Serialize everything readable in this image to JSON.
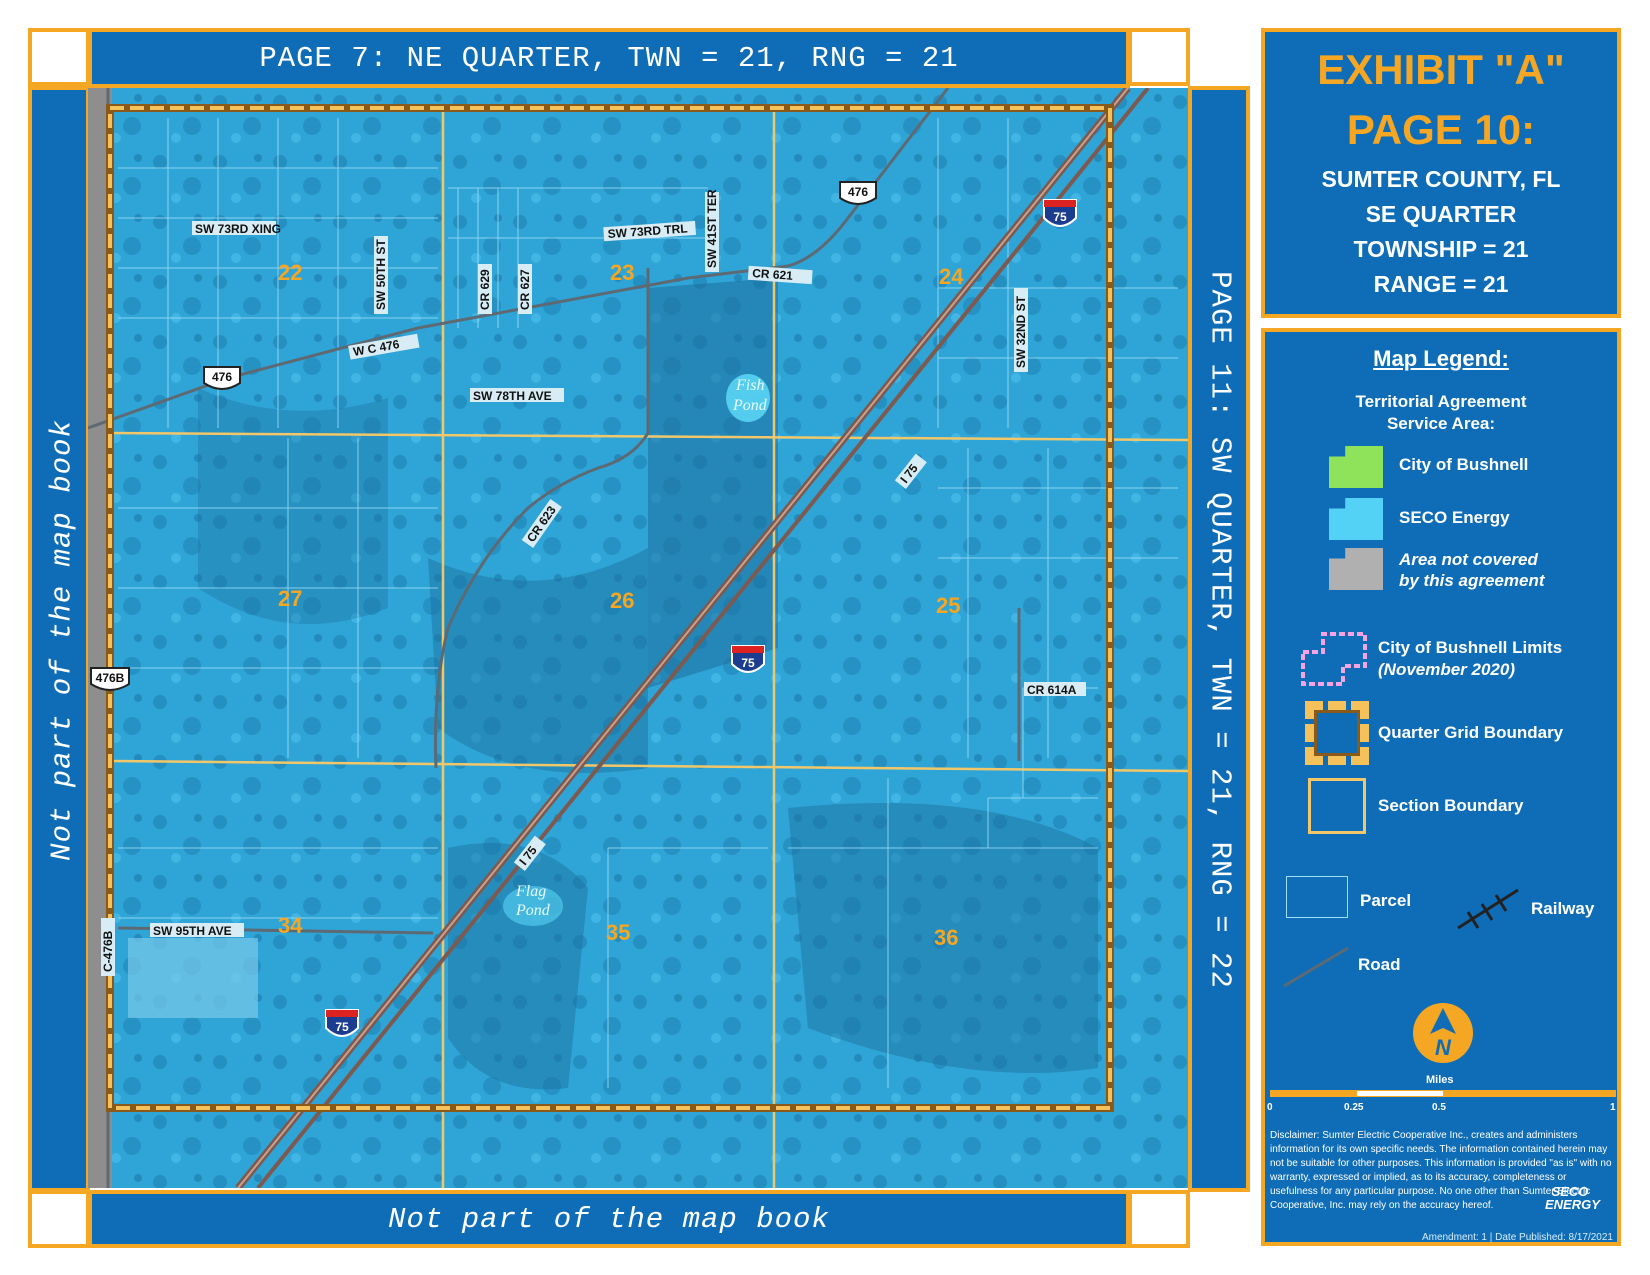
{
  "top_banner": "PAGE 7: NE QUARTER, TWN = 21, RNG = 21",
  "bottom_banner": "Not part of the map book",
  "left_side": "Not part of the map book",
  "right_side": "PAGE 11: SW QUARTER, TWN = 21, RNG = 22",
  "exhibit": {
    "title": "EXHIBIT \"A\"",
    "page": "PAGE 10:",
    "county": "SUMTER COUNTY, FL",
    "quarter": "SE QUARTER",
    "township": "TOWNSHIP = 21",
    "range": "RANGE = 21"
  },
  "legend": {
    "title": "Map Legend:",
    "subtitle_1": "Territorial Agreement",
    "subtitle_2": "Service Area:",
    "bushnell": "City of Bushnell",
    "seco": "SECO Energy",
    "not_covered_1": "Area not covered",
    "not_covered_2": "by this agreement",
    "limits_1": "City of Bushnell Limits",
    "limits_2": "(November 2020)",
    "quarter_grid": "Quarter Grid Boundary",
    "section": "Section Boundary",
    "parcel": "Parcel",
    "railway": "Railway",
    "road": "Road",
    "miles": "Miles",
    "scale_ticks": [
      "0",
      "0.25",
      "0.5",
      "1"
    ],
    "colors": {
      "bushnell": "#8fe35a",
      "seco": "#54d2f5",
      "not_covered": "#b0b0b0",
      "limits": "#f5a3e3",
      "grid": "#f5a623"
    }
  },
  "disclaimer": "Disclaimer: Sumter Electric Cooperative Inc., creates and administers information for its own specific needs. The information contained herein may not be suitable for other purposes. This information is provided \"as is\" with no warranty, expressed or implied, as to its accuracy, completeness or usefulness for any particular purpose. No one other than Sumter Electric Cooperative, Inc. may rely on the accuracy hereof.",
  "seco_logo": "SECO ENERGY",
  "footer": "Amendment: 1 | Date Published: 8/17/2021",
  "north_icon": "north-arrow-icon",
  "map": {
    "sections": [
      "22",
      "23",
      "24",
      "27",
      "26",
      "25",
      "34",
      "35",
      "36"
    ],
    "roads": {
      "sw73rd_xing": "SW 73RD XING",
      "sw50th": "SW 50TH ST",
      "cr629": "CR 629",
      "cr627": "CR 627",
      "sw73rd_trl": "SW 73RD TRL",
      "sw41st": "SW 41ST TER",
      "cr621": "CR 621",
      "wc476": "W C 476",
      "sw78th": "SW 78TH AVE",
      "sw32nd": "SW 32ND ST",
      "cr623": "CR 623",
      "i75_a": "I 75",
      "i75_b": "I 75",
      "cr614a": "CR 614A",
      "sw95th": "SW 95TH AVE",
      "c476b": "C-476B"
    },
    "shields": {
      "s476_a": "476",
      "s476_b": "476",
      "s476b": "476B",
      "i75": "75"
    },
    "water": {
      "fish_1": "Fish",
      "fish_2": "Pond",
      "flag_1": "Flag",
      "flag_2": "Pond"
    }
  }
}
